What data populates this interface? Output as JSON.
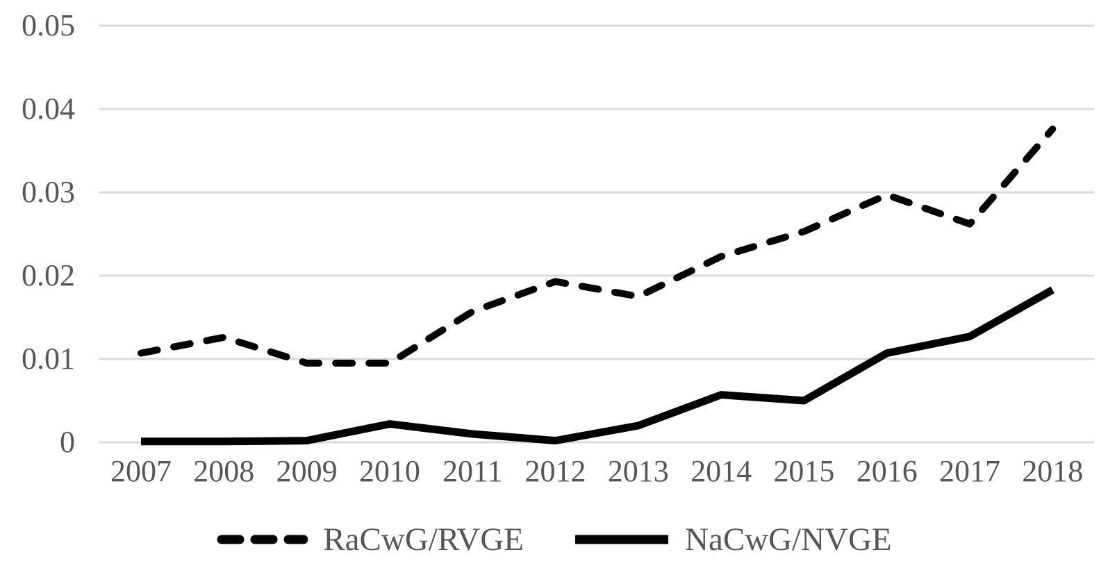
{
  "chart_data": {
    "type": "line",
    "title": "",
    "xlabel": "",
    "ylabel": "",
    "categories": [
      "2007",
      "2008",
      "2009",
      "2010",
      "2011",
      "2012",
      "2013",
      "2014",
      "2015",
      "2016",
      "2017",
      "2018"
    ],
    "series": [
      {
        "name": "RaCwG/RVGE",
        "style": "dashed",
        "values": [
          0.0107,
          0.0126,
          0.0095,
          0.0095,
          0.0157,
          0.0193,
          0.0175,
          0.0223,
          0.0253,
          0.0297,
          0.0262,
          0.0376
        ]
      },
      {
        "name": "NaCwG/NVGE",
        "style": "solid",
        "values": [
          0.0001,
          0.0001,
          0.0002,
          0.0022,
          0.001,
          0.0002,
          0.002,
          0.0057,
          0.005,
          0.0107,
          0.0127,
          0.0183
        ]
      }
    ],
    "ylim": [
      0,
      0.05
    ],
    "yticks": [
      0,
      0.01,
      0.02,
      0.03,
      0.04,
      0.05
    ],
    "ytick_labels": [
      "0",
      "0.01",
      "0.02",
      "0.03",
      "0.04",
      "0.05"
    ],
    "grid": true,
    "legend_position": "bottom"
  },
  "colors": {
    "line": "#000000",
    "gridline": "#d9d9d9",
    "label": "#565656",
    "background": "#ffffff"
  }
}
